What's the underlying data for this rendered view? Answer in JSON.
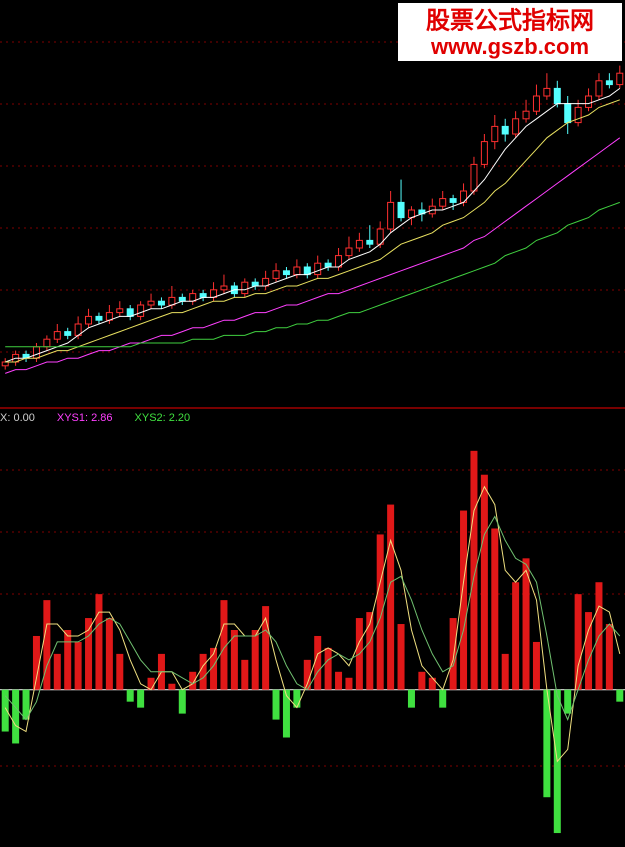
{
  "watermark": {
    "title": "股票公式指标网",
    "url": "www.gszb.com"
  },
  "chart_data": [
    {
      "type": "candlestick",
      "ylim": [
        0,
        100
      ],
      "up_color": "#ff3030",
      "down_color": "#54ffff",
      "ohlc": [
        [
          9,
          10,
          11,
          8
        ],
        [
          10,
          12,
          13,
          9
        ],
        [
          12,
          11,
          13,
          10
        ],
        [
          11,
          14,
          15,
          10
        ],
        [
          14,
          16,
          17,
          13
        ],
        [
          16,
          18,
          20,
          15
        ],
        [
          18,
          17,
          19,
          16
        ],
        [
          17,
          20,
          22,
          16
        ],
        [
          20,
          22,
          24,
          19
        ],
        [
          22,
          21,
          23,
          20
        ],
        [
          21,
          23,
          25,
          20
        ],
        [
          23,
          24,
          26,
          22
        ],
        [
          24,
          22,
          25,
          21
        ],
        [
          22,
          25,
          26,
          21
        ],
        [
          25,
          26,
          28,
          24
        ],
        [
          26,
          25,
          27,
          24
        ],
        [
          25,
          27,
          30,
          24
        ],
        [
          27,
          26,
          28,
          25
        ],
        [
          26,
          28,
          29,
          25
        ],
        [
          28,
          27,
          29,
          26
        ],
        [
          27,
          29,
          31,
          26
        ],
        [
          29,
          30,
          33,
          28
        ],
        [
          30,
          28,
          31,
          27
        ],
        [
          28,
          31,
          32,
          27
        ],
        [
          31,
          30,
          32,
          29
        ],
        [
          30,
          32,
          34,
          29
        ],
        [
          32,
          34,
          36,
          31
        ],
        [
          34,
          33,
          35,
          32
        ],
        [
          33,
          35,
          37,
          32
        ],
        [
          35,
          33,
          36,
          32
        ],
        [
          33,
          36,
          38,
          32
        ],
        [
          36,
          35,
          37,
          34
        ],
        [
          35,
          38,
          40,
          34
        ],
        [
          38,
          40,
          43,
          37
        ],
        [
          40,
          42,
          44,
          39
        ],
        [
          42,
          41,
          46,
          40
        ],
        [
          41,
          45,
          47,
          40
        ],
        [
          45,
          52,
          55,
          44
        ],
        [
          52,
          48,
          58,
          47
        ],
        [
          48,
          50,
          51,
          46
        ],
        [
          50,
          49,
          52,
          47
        ],
        [
          49,
          51,
          53,
          48
        ],
        [
          51,
          53,
          55,
          50
        ],
        [
          53,
          52,
          54,
          50
        ],
        [
          52,
          55,
          57,
          51
        ],
        [
          55,
          62,
          64,
          54
        ],
        [
          62,
          68,
          70,
          61
        ],
        [
          68,
          72,
          75,
          66
        ],
        [
          72,
          70,
          74,
          68
        ],
        [
          70,
          74,
          76,
          69
        ],
        [
          74,
          76,
          79,
          73
        ],
        [
          76,
          80,
          83,
          75
        ],
        [
          80,
          82,
          86,
          79
        ],
        [
          82,
          78,
          84,
          77
        ],
        [
          78,
          73,
          80,
          70
        ],
        [
          73,
          77,
          79,
          72
        ],
        [
          77,
          80,
          82,
          76
        ],
        [
          80,
          84,
          86,
          79
        ],
        [
          84,
          83,
          86,
          82
        ],
        [
          83,
          86,
          88,
          82
        ]
      ],
      "lines": [
        {
          "color": "#ffffff",
          "values": [
            10,
            11,
            11,
            12,
            13,
            14,
            15,
            17,
            19,
            20,
            21,
            22,
            22,
            23,
            24,
            24,
            25,
            26,
            26,
            27,
            27,
            28,
            29,
            29,
            30,
            30,
            31,
            32,
            33,
            33,
            34,
            35,
            35,
            37,
            38,
            39,
            41,
            44,
            46,
            48,
            49,
            50,
            50,
            51,
            52,
            55,
            58,
            62,
            66,
            69,
            72,
            74,
            76,
            78,
            78,
            78,
            78,
            79,
            80,
            82
          ]
        },
        {
          "color": "#e8e060",
          "values": [
            10,
            10,
            11,
            11,
            12,
            13,
            13,
            14,
            15,
            16,
            17,
            18,
            19,
            20,
            21,
            22,
            23,
            23,
            24,
            25,
            26,
            26,
            27,
            27,
            28,
            28,
            29,
            30,
            30,
            31,
            32,
            32,
            33,
            34,
            35,
            36,
            37,
            39,
            41,
            42,
            43,
            44,
            46,
            47,
            48,
            50,
            52,
            55,
            57,
            60,
            63,
            66,
            69,
            71,
            73,
            74,
            75,
            77,
            78,
            79
          ]
        },
        {
          "color": "#ff40ff",
          "values": [
            7,
            8,
            8,
            9,
            10,
            10,
            11,
            11,
            12,
            13,
            13,
            14,
            15,
            15,
            16,
            17,
            17,
            18,
            19,
            19,
            20,
            21,
            21,
            22,
            23,
            23,
            24,
            25,
            25,
            26,
            27,
            28,
            28,
            29,
            30,
            31,
            32,
            33,
            34,
            35,
            36,
            37,
            38,
            39,
            40,
            42,
            43,
            45,
            47,
            49,
            51,
            53,
            55,
            57,
            59,
            61,
            63,
            65,
            67,
            69
          ]
        },
        {
          "color": "#40d040",
          "values": [
            14,
            14,
            14,
            14,
            14,
            14,
            14,
            14,
            14,
            14,
            14,
            14,
            14,
            15,
            15,
            15,
            15,
            15,
            16,
            16,
            16,
            17,
            17,
            17,
            18,
            18,
            19,
            19,
            20,
            20,
            21,
            21,
            22,
            23,
            23,
            24,
            25,
            26,
            27,
            28,
            29,
            30,
            31,
            32,
            33,
            34,
            35,
            36,
            38,
            39,
            40,
            42,
            43,
            44,
            46,
            47,
            48,
            50,
            51,
            52
          ]
        }
      ]
    },
    {
      "type": "bar",
      "ylim": [
        -2.6,
        4.6
      ],
      "up_color": "#e01818",
      "down_color": "#40e040",
      "legend": [
        {
          "text": "X: 0.00",
          "color": "#d0d0d0"
        },
        {
          "text": "XYS1: 2.86",
          "color": "#ff40ff"
        },
        {
          "text": "XYS2: 2.20",
          "color": "#40e040"
        }
      ],
      "values": [
        -0.7,
        -0.9,
        -0.5,
        0.9,
        1.5,
        0.6,
        1.0,
        0.8,
        1.2,
        1.6,
        1.2,
        0.6,
        -0.2,
        -0.3,
        0.2,
        0.6,
        0.1,
        -0.4,
        0.3,
        0.6,
        0.7,
        1.5,
        1.0,
        0.5,
        1.0,
        1.4,
        -0.5,
        -0.8,
        -0.3,
        0.5,
        0.9,
        0.7,
        0.3,
        0.2,
        1.2,
        1.3,
        2.6,
        3.1,
        1.1,
        -0.3,
        0.3,
        0.2,
        -0.3,
        1.2,
        3.0,
        4.0,
        3.6,
        2.7,
        0.6,
        1.8,
        2.2,
        0.8,
        -1.8,
        -2.4,
        -0.4,
        1.6,
        1.3,
        1.8,
        1.1,
        -0.2
      ],
      "lines": [
        {
          "color": "#f0e080",
          "values": [
            -0.3,
            -0.6,
            -0.7,
            0.2,
            1.1,
            1.1,
            0.9,
            0.9,
            1.0,
            1.3,
            1.3,
            1.0,
            0.5,
            0.1,
            0.0,
            0.3,
            0.3,
            0.0,
            0.1,
            0.4,
            0.6,
            1.1,
            1.1,
            0.9,
            0.9,
            1.2,
            0.5,
            -0.1,
            -0.3,
            0.1,
            0.6,
            0.7,
            0.6,
            0.4,
            0.8,
            1.1,
            1.8,
            2.5,
            2.0,
            1.0,
            0.4,
            0.2,
            0.0,
            0.5,
            1.8,
            3.0,
            3.4,
            3.1,
            2.0,
            1.8,
            2.0,
            1.5,
            0.0,
            -1.2,
            -1.0,
            0.4,
            1.0,
            1.4,
            1.3,
            0.6
          ]
        },
        {
          "color": "#70c070",
          "values": [
            -0.1,
            -0.3,
            -0.5,
            -0.2,
            0.4,
            0.8,
            0.8,
            0.8,
            0.9,
            1.1,
            1.2,
            1.1,
            0.8,
            0.5,
            0.3,
            0.3,
            0.3,
            0.2,
            0.1,
            0.2,
            0.4,
            0.7,
            0.9,
            0.9,
            0.9,
            1.0,
            0.8,
            0.4,
            0.1,
            0.0,
            0.3,
            0.5,
            0.6,
            0.5,
            0.6,
            0.8,
            1.2,
            1.8,
            1.9,
            1.5,
            1.0,
            0.6,
            0.3,
            0.4,
            1.0,
            1.9,
            2.6,
            2.9,
            2.5,
            2.2,
            2.1,
            1.8,
            0.9,
            -0.1,
            -0.5,
            0.0,
            0.5,
            0.9,
            1.1,
            0.9
          ]
        }
      ]
    }
  ]
}
